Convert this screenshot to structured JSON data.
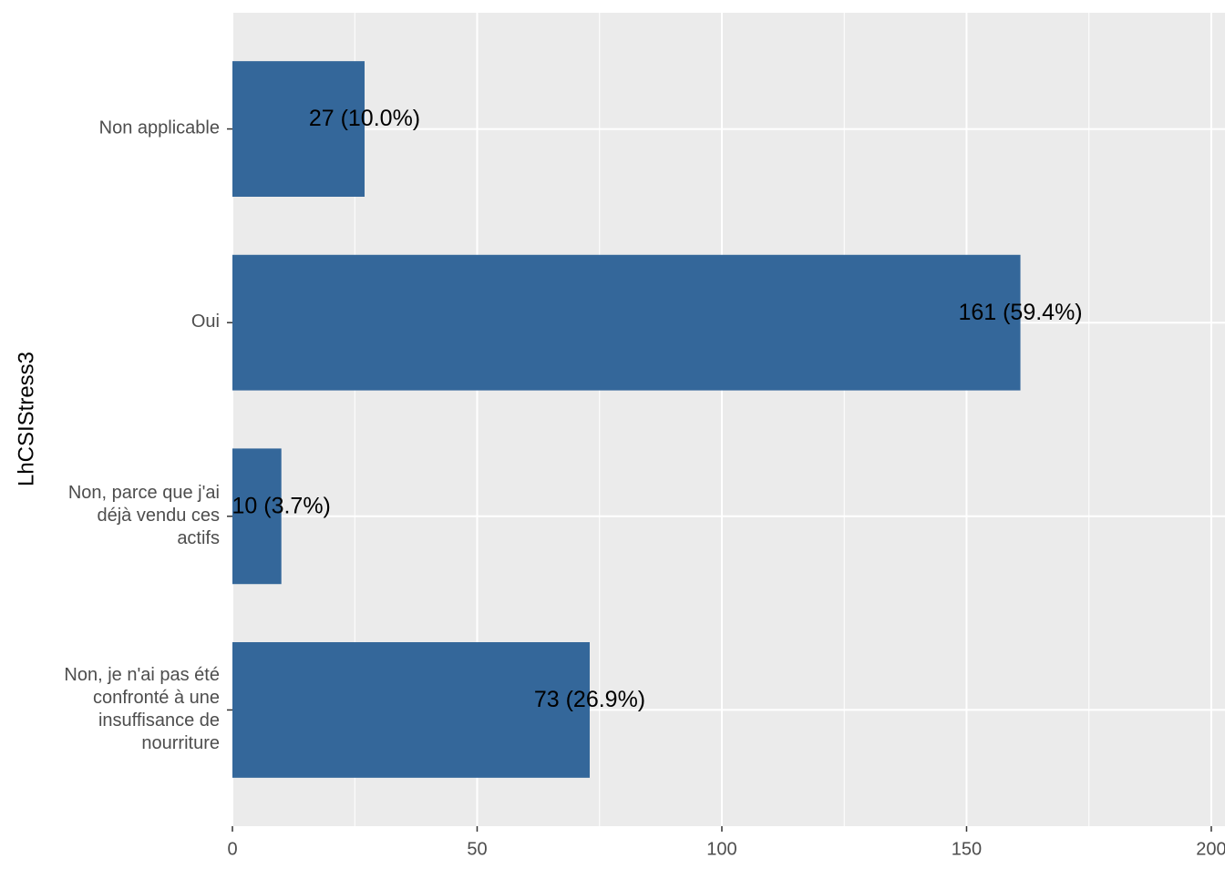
{
  "chart_data": {
    "type": "bar",
    "orientation": "horizontal",
    "y_label": "LhCSIStress3",
    "categories": [
      "Non applicable",
      "Oui",
      "Non, parce que j'ai\ndéjà vendu ces\nactifs",
      "Non, je n'ai pas été\nconfronté à une\ninsuffisance de\nnourriture"
    ],
    "values": [
      27,
      161,
      10,
      73
    ],
    "value_labels": [
      "27 (10.0%)",
      "161 (59.4%)",
      "10 (3.7%)",
      "73 (26.9%)"
    ],
    "color": "#34679a",
    "xlim": [
      0,
      202.8
    ],
    "xticks": [
      0,
      50,
      100,
      150,
      200
    ],
    "grid": true
  }
}
